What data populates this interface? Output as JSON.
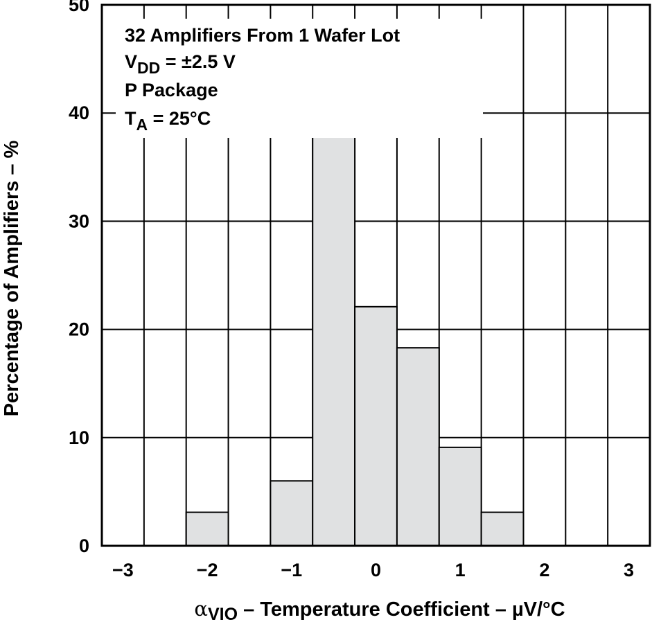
{
  "chart_data": {
    "type": "bar",
    "subtype": "histogram",
    "bin_edges": [
      -3.25,
      -2.75,
      -2.25,
      -1.75,
      -1.25,
      -0.75,
      -0.25,
      0.25,
      0.75,
      1.25,
      1.75,
      2.25,
      2.75,
      3.25
    ],
    "values": [
      0,
      0,
      3.1,
      0,
      6.0,
      37.8,
      22.1,
      18.3,
      9.1,
      3.1,
      0,
      0,
      0
    ],
    "xlim": [
      -3.25,
      3.25
    ],
    "ylim": [
      0,
      50
    ],
    "x_ticks": [
      -3,
      -2,
      -1,
      0,
      1,
      2,
      3
    ],
    "x_tick_labels": [
      "−3",
      "−2",
      "−1",
      "0",
      "1",
      "2",
      "3"
    ],
    "y_ticks": [
      0,
      10,
      20,
      30,
      40,
      50
    ],
    "y_tick_labels": [
      "0",
      "10",
      "20",
      "30",
      "40",
      "50"
    ],
    "ylabel": "Percentage of Amplifiers – %",
    "xlabel": {
      "symbol": "α",
      "subscript": "VIO",
      "text": " – Temperature Coefficient – µV/°C"
    },
    "annotations": {
      "line1": "32 Amplifiers From 1 Wafer Lot",
      "line2": {
        "main": "V",
        "sub": "DD",
        "rest": " = ±2.5 V"
      },
      "line3": "P Package",
      "line4": {
        "main": "T",
        "sub": "A",
        "rest": " = 25°C"
      }
    },
    "grid": true,
    "legend": "none",
    "colors": {
      "bar_fill": "#e0e1e2",
      "bar_stroke": "#000000",
      "grid": "#000000",
      "background": "#ffffff"
    }
  }
}
